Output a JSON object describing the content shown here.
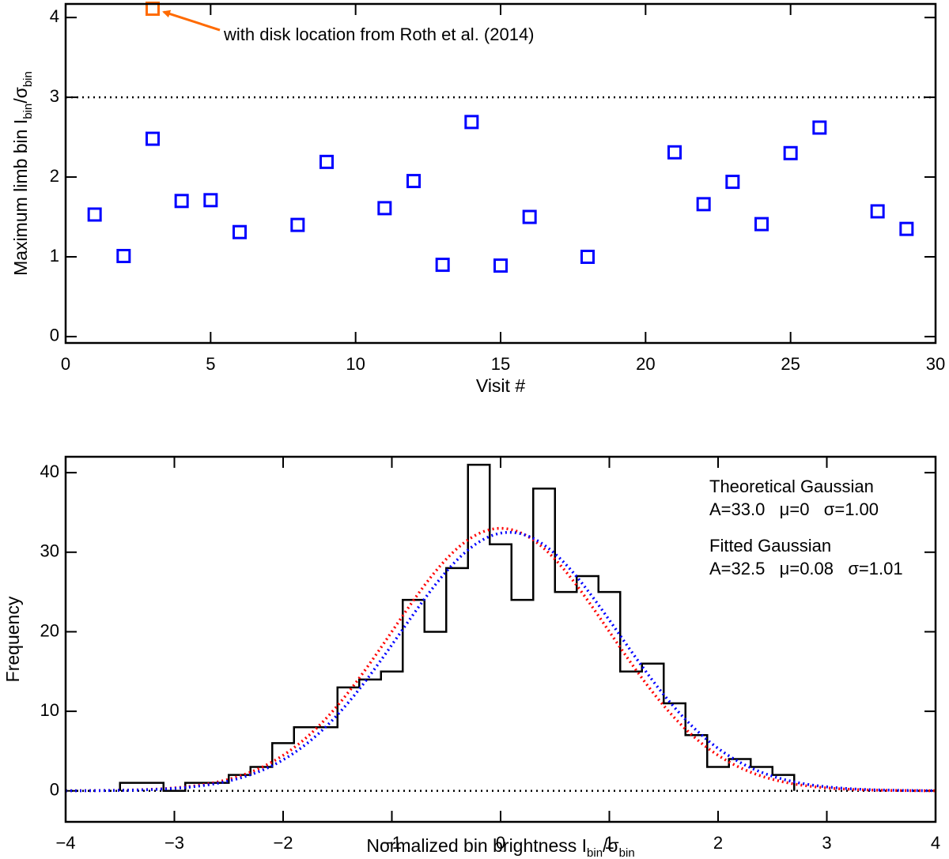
{
  "chart_data": [
    {
      "type": "scatter",
      "xlabel": [
        "Visit #"
      ],
      "ylabel": [
        "Maximum limb bin I",
        "bin",
        "/σ",
        "bin"
      ],
      "series": [
        {
          "color": "#0000ff",
          "x": [
            1,
            2,
            3,
            4,
            5,
            6,
            8,
            9,
            11,
            12,
            13,
            14,
            15,
            16,
            18,
            21,
            22,
            23,
            24,
            25,
            26,
            28,
            29
          ],
          "values": [
            1.53,
            1.01,
            2.48,
            1.7,
            1.71,
            1.31,
            1.4,
            2.19,
            1.61,
            1.95,
            0.9,
            2.69,
            0.89,
            1.5,
            1.0,
            2.31,
            1.66,
            1.94,
            1.41,
            2.3,
            2.62,
            1.57,
            1.35
          ]
        },
        {
          "color": "#ff6a00",
          "x": [
            3
          ],
          "values": [
            4.11
          ]
        }
      ],
      "annotation": {
        "text": "with disk location from Roth et al. (2014)",
        "color": "#ff6a00"
      },
      "hline": 3,
      "xlim": [
        0,
        30
      ],
      "xticks": [
        0,
        5,
        10,
        15,
        20,
        25,
        30
      ],
      "ylim": [
        -0.08,
        4.17
      ],
      "yticks": [
        0,
        1,
        2,
        3,
        4
      ]
    },
    {
      "type": "histogram",
      "xlabel": [
        "Normalized bin brightness I",
        "bin",
        "/σ",
        "bin"
      ],
      "ylabel": [
        "Frequency"
      ],
      "color": "#000000",
      "bins": [
        -3.5,
        -3.3,
        -3.1,
        -2.9,
        -2.7,
        -2.5,
        -2.3,
        -2.1,
        -1.9,
        -1.7,
        -1.5,
        -1.3,
        -1.1,
        -0.9,
        -0.7,
        -0.5,
        -0.3,
        -0.1,
        0.1,
        0.3,
        0.5,
        0.7,
        0.9,
        1.1,
        1.3,
        1.5,
        1.7,
        1.9,
        2.1,
        2.3,
        2.5,
        2.7
      ],
      "values": [
        1,
        1,
        0,
        1,
        1,
        2,
        3,
        6,
        8,
        8,
        13,
        14,
        15,
        24,
        20,
        28,
        41,
        31,
        24,
        38,
        25,
        27,
        25,
        15,
        16,
        11,
        7,
        3,
        4,
        3,
        2
      ],
      "curves": [
        {
          "name": "Theoretical Gaussian",
          "color": "#ff0000",
          "A": 33.0,
          "mu": 0,
          "sigma": 1.0,
          "label": "A=33.0   μ=0   σ=1.00"
        },
        {
          "name": "Fitted Gaussian",
          "color": "#0000ff",
          "A": 32.5,
          "mu": 0.08,
          "sigma": 1.01,
          "label": "A=32.5   μ=0.08   σ=1.01"
        }
      ],
      "hline": 0,
      "xlim": [
        -4,
        4
      ],
      "xticks": [
        {
          "value": -4,
          "label": "−4"
        },
        {
          "value": -3,
          "label": "−3"
        },
        {
          "value": -2,
          "label": "−2"
        },
        {
          "value": -1,
          "label": "−1"
        },
        0,
        1,
        2,
        3,
        4
      ],
      "ylim": [
        -3.9,
        42
      ],
      "yticks": [
        0,
        10,
        20,
        30,
        40
      ]
    }
  ]
}
